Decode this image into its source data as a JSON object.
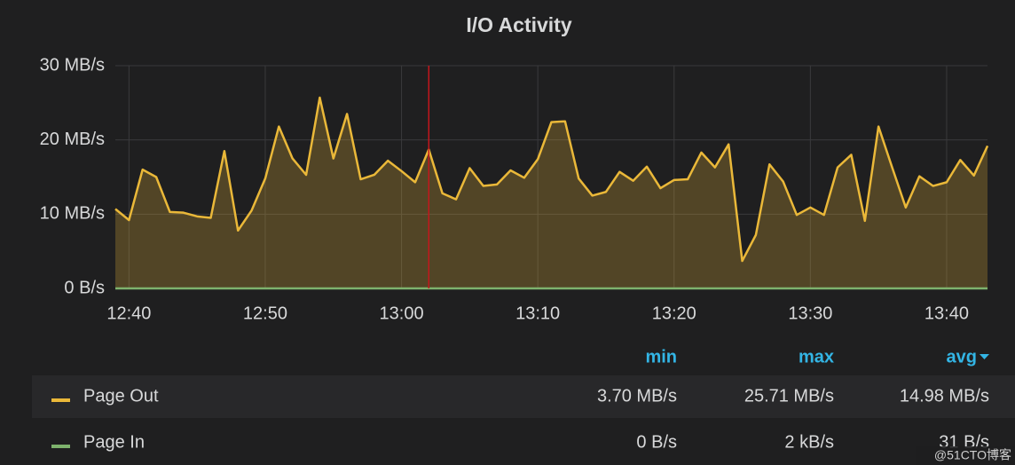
{
  "chart_data": {
    "type": "area",
    "title": "I/O Activity",
    "x": [
      "12:39",
      "12:40",
      "12:41",
      "12:42",
      "12:43",
      "12:44",
      "12:45",
      "12:46",
      "12:47",
      "12:48",
      "12:49",
      "12:50",
      "12:51",
      "12:52",
      "12:53",
      "12:54",
      "12:55",
      "12:56",
      "12:57",
      "12:58",
      "12:59",
      "13:00",
      "13:01",
      "13:02",
      "13:03",
      "13:04",
      "13:05",
      "13:06",
      "13:07",
      "13:08",
      "13:09",
      "13:10",
      "13:11",
      "13:12",
      "13:13",
      "13:14",
      "13:15",
      "13:16",
      "13:17",
      "13:18",
      "13:19",
      "13:20",
      "13:21",
      "13:22",
      "13:23",
      "13:24",
      "13:25",
      "13:26",
      "13:27",
      "13:28",
      "13:29",
      "13:30",
      "13:31",
      "13:32",
      "13:33",
      "13:34",
      "13:35",
      "13:36",
      "13:37",
      "13:38",
      "13:39",
      "13:40",
      "13:41",
      "13:42",
      "13:43"
    ],
    "series": [
      {
        "name": "Page Out",
        "color": "#eab839",
        "fill": true,
        "values": [
          10.7,
          9.2,
          16,
          15,
          10.3,
          10.2,
          9.7,
          9.5,
          18.5,
          7.8,
          10.5,
          14.8,
          21.8,
          17.5,
          15.3,
          25.7,
          17.5,
          23.5,
          14.7,
          15.3,
          17.2,
          15.8,
          14.3,
          18.7,
          12.8,
          12,
          16.2,
          13.8,
          14,
          15.9,
          14.9,
          17.4,
          22.4,
          22.5,
          14.8,
          12.5,
          13,
          15.7,
          14.5,
          16.4,
          13.5,
          14.6,
          14.7,
          18.3,
          16.3,
          19.4,
          3.7,
          7.2,
          16.7,
          14.4,
          9.9,
          10.9,
          9.9,
          16.3,
          18,
          9.1,
          21.8,
          16.3,
          10.9,
          15.1,
          13.8,
          14.3,
          17.3,
          15.2,
          19.2
        ],
        "stats": [
          "3.70 MB/s",
          "25.71 MB/s",
          "14.98 MB/s"
        ]
      },
      {
        "name": "Page In",
        "color": "#7eb26d",
        "fill": false,
        "values": [
          0,
          0,
          0,
          0,
          0,
          0,
          0,
          0,
          0,
          0,
          0,
          0,
          0,
          0,
          0,
          0,
          0,
          0,
          0,
          0,
          0,
          0,
          0,
          0,
          0,
          0,
          0,
          0,
          0,
          0,
          0,
          0,
          0,
          0,
          0,
          0,
          0,
          0,
          0,
          0,
          0,
          0,
          0,
          0,
          0,
          0,
          0,
          0,
          0,
          0,
          0,
          0,
          0,
          0,
          0,
          0,
          0,
          0,
          0,
          0,
          0,
          0,
          0,
          0,
          0
        ],
        "stats": [
          "0 B/s",
          "2 kB/s",
          "31 B/s"
        ]
      }
    ],
    "ylim": [
      0,
      30
    ],
    "yticks": [
      {
        "value": 0,
        "label": "0 B/s"
      },
      {
        "value": 10,
        "label": "10 MB/s"
      },
      {
        "value": 20,
        "label": "20 MB/s"
      },
      {
        "value": 30,
        "label": "30 MB/s"
      }
    ],
    "xticks": [
      "12:40",
      "12:50",
      "13:00",
      "13:10",
      "13:20",
      "13:30",
      "13:40"
    ],
    "grid": true,
    "marker_x": "13:02",
    "marker_color": "#c4161c",
    "legend_columns": [
      "min",
      "max",
      "avg"
    ],
    "watermark": "@51CTO博客"
  }
}
